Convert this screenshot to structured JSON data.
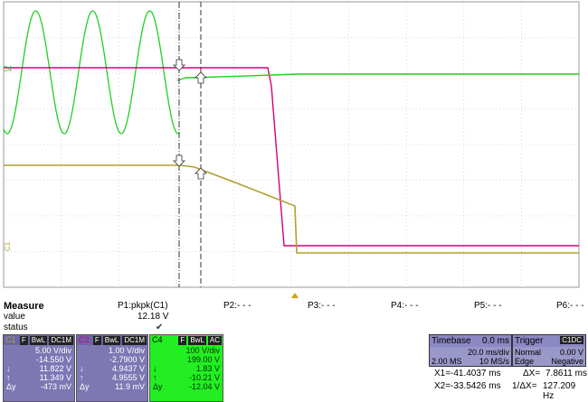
{
  "channel_markers": {
    "c4": "C4",
    "c1": "C1"
  },
  "measure": {
    "title": "Measure",
    "row_labels": [
      "value",
      "status"
    ],
    "params": [
      "P1:pkpk(C1)",
      "P2:- - -",
      "P3:- - -",
      "P4:- - -",
      "P5:- - -",
      "P6:- - -"
    ],
    "p1_value": "12.18 V",
    "p1_status": "✔"
  },
  "channels": [
    {
      "id": "C1",
      "tags": [
        "F",
        "BwL",
        "DC1M"
      ],
      "color": "#b8a82e",
      "bg": "#7d78b4",
      "vdiv": "5.00 V/div",
      "offset": "-14.550 V",
      "x1_label": "↓",
      "x1": "11.822 V",
      "x2_label": "↑",
      "x2": "11.349 V",
      "dy_label": "Δy",
      "dy": "-473 mV"
    },
    {
      "id": "C2",
      "tags": [
        "F",
        "BwL",
        "DC1M"
      ],
      "color": "#d6007e",
      "bg": "#7d78b4",
      "vdiv": "1.00 V/div",
      "offset": "-2.7900 V",
      "x1_label": "↓",
      "x1": "4.9437 V",
      "x2_label": "↑",
      "x2": "4.9555 V",
      "dy_label": "Δy",
      "dy": "11.9 mV"
    },
    {
      "id": "C4",
      "tags": [
        "F",
        "BwL",
        "AC"
      ],
      "color": "#20d020",
      "bg": "#22ee22",
      "vdiv": "100 V/div",
      "offset": "199.00 V",
      "x1_label": "↓",
      "x1": "1.83 V",
      "x2_label": "↑",
      "x2": "-10.21 V",
      "dy_label": "Δy",
      "dy": "-12.04 V"
    }
  ],
  "timebase": {
    "label": "Timebase",
    "delay": "0.0 ms",
    "tdiv": "20.0 ms/div",
    "samples": "2.00 MS",
    "rate": "10 MS/s"
  },
  "trigger": {
    "label": "Trigger",
    "source": "C1DC",
    "mode": "Normal",
    "level": "0.00 V",
    "type": "Edge",
    "slope": "Negative"
  },
  "cursors": {
    "x1_label": "X1=",
    "x1": "-41.4037 ms",
    "dx_label": "ΔX=",
    "dx": "7.8611 ms",
    "x2_label": "X2=",
    "x2": "-33.5426 ms",
    "inv_label": "1/ΔX=",
    "inv": "127.209 Hz"
  },
  "colors": {
    "grid": "#bbbbbb",
    "c1": "#b8a82e",
    "c2": "#d6007e",
    "c4": "#20d020",
    "panel": "#7d78b4"
  }
}
